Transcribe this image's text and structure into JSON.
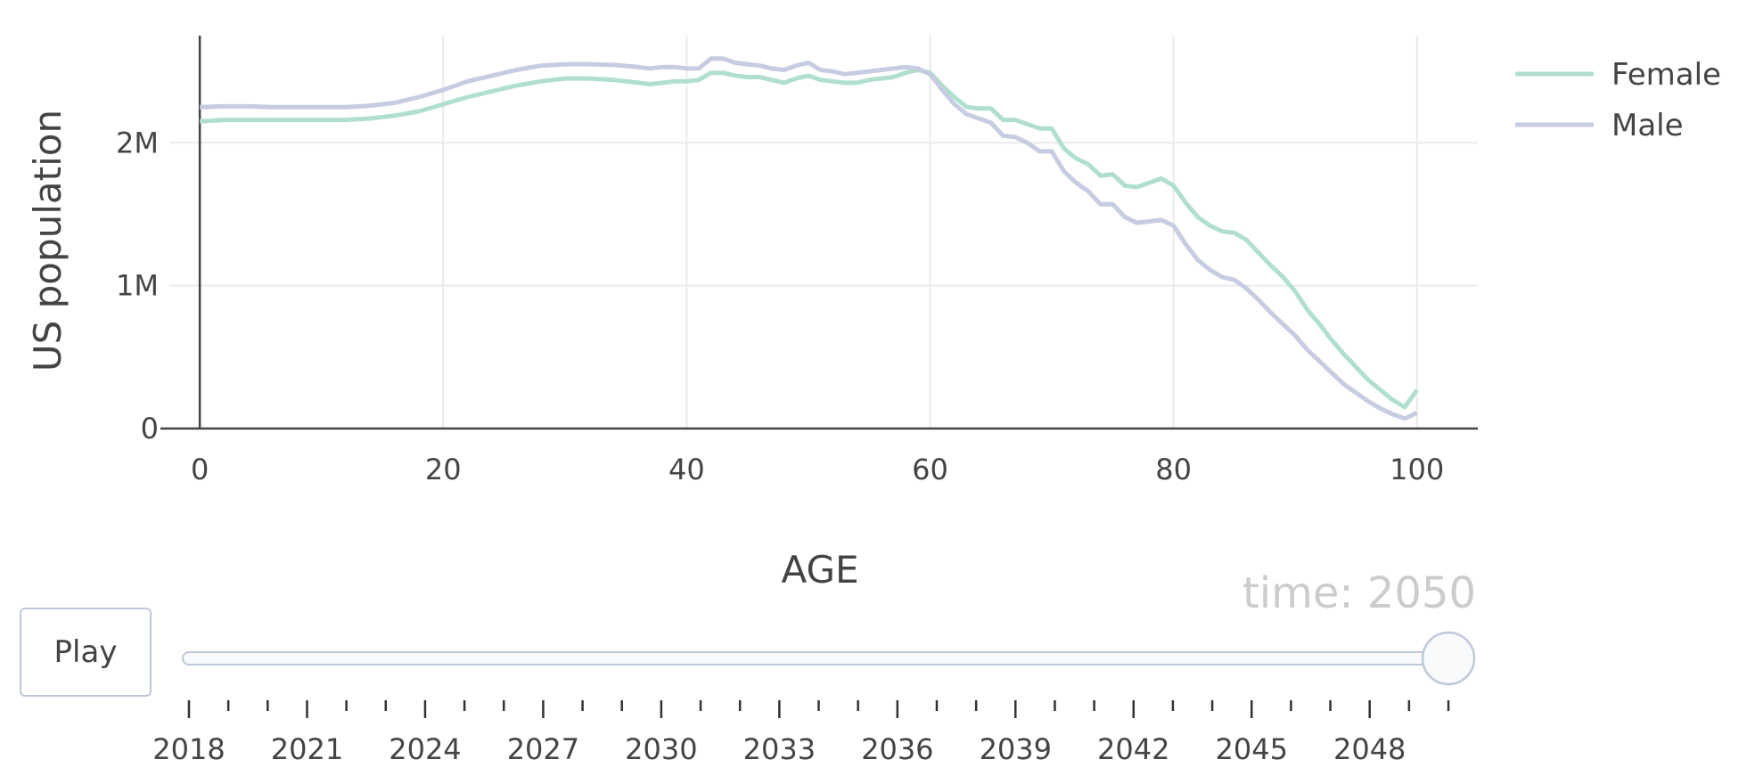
{
  "chart_data": {
    "type": "line",
    "xlabel": "AGE",
    "ylabel": "US population",
    "xlim": [
      -2.5,
      105
    ],
    "ylim": [
      0,
      2750000
    ],
    "x_ticks": [
      0,
      20,
      40,
      60,
      80,
      100
    ],
    "y_ticks": [
      0,
      1000000,
      2000000
    ],
    "y_tick_labels": [
      "0",
      "1M",
      "2M"
    ],
    "grid": true,
    "legend_position": "top-right",
    "series": [
      {
        "name": "Female",
        "color": "#b0e0cd",
        "x": [
          0,
          2,
          4,
          6,
          8,
          10,
          12,
          14,
          16,
          18,
          20,
          22,
          24,
          26,
          28,
          30,
          32,
          34,
          36,
          37,
          38,
          39,
          40,
          41,
          42,
          43,
          44,
          45,
          46,
          47,
          48,
          49,
          50,
          51,
          52,
          53,
          54,
          55,
          56,
          57,
          58,
          59,
          60,
          61,
          62,
          63,
          64,
          65,
          66,
          67,
          68,
          69,
          70,
          71,
          72,
          73,
          74,
          75,
          76,
          77,
          78,
          79,
          80,
          81,
          82,
          83,
          84,
          85,
          86,
          87,
          88,
          89,
          90,
          91,
          92,
          93,
          94,
          95,
          96,
          97,
          98,
          99,
          100
        ],
        "y": [
          2150000,
          2160000,
          2160000,
          2160000,
          2160000,
          2160000,
          2160000,
          2170000,
          2190000,
          2220000,
          2270000,
          2320000,
          2360000,
          2400000,
          2430000,
          2450000,
          2450000,
          2440000,
          2420000,
          2410000,
          2420000,
          2430000,
          2430000,
          2440000,
          2490000,
          2490000,
          2470000,
          2460000,
          2460000,
          2440000,
          2420000,
          2450000,
          2470000,
          2440000,
          2430000,
          2420000,
          2420000,
          2440000,
          2450000,
          2460000,
          2490000,
          2510000,
          2490000,
          2400000,
          2320000,
          2250000,
          2240000,
          2240000,
          2160000,
          2160000,
          2130000,
          2100000,
          2100000,
          1960000,
          1890000,
          1850000,
          1770000,
          1780000,
          1700000,
          1690000,
          1720000,
          1750000,
          1700000,
          1580000,
          1480000,
          1420000,
          1380000,
          1370000,
          1320000,
          1230000,
          1140000,
          1060000,
          960000,
          830000,
          730000,
          620000,
          520000,
          430000,
          340000,
          270000,
          200000,
          150000,
          270000
        ]
      },
      {
        "name": "Male",
        "color": "#c6cce2",
        "x": [
          0,
          2,
          4,
          6,
          8,
          10,
          12,
          14,
          16,
          18,
          20,
          22,
          24,
          26,
          28,
          30,
          32,
          34,
          36,
          37,
          38,
          39,
          40,
          41,
          42,
          43,
          44,
          45,
          46,
          47,
          48,
          49,
          50,
          51,
          52,
          53,
          54,
          55,
          56,
          57,
          58,
          59,
          60,
          61,
          62,
          63,
          64,
          65,
          66,
          67,
          68,
          69,
          70,
          71,
          72,
          73,
          74,
          75,
          76,
          77,
          78,
          79,
          80,
          81,
          82,
          83,
          84,
          85,
          86,
          87,
          88,
          89,
          90,
          91,
          92,
          93,
          94,
          95,
          96,
          97,
          98,
          99,
          100
        ],
        "y": [
          2250000,
          2255000,
          2255000,
          2250000,
          2250000,
          2250000,
          2250000,
          2260000,
          2280000,
          2320000,
          2370000,
          2430000,
          2470000,
          2510000,
          2540000,
          2550000,
          2550000,
          2545000,
          2530000,
          2520000,
          2530000,
          2530000,
          2520000,
          2520000,
          2590000,
          2590000,
          2560000,
          2550000,
          2540000,
          2520000,
          2510000,
          2540000,
          2560000,
          2510000,
          2500000,
          2480000,
          2490000,
          2500000,
          2510000,
          2520000,
          2530000,
          2520000,
          2480000,
          2370000,
          2270000,
          2200000,
          2170000,
          2140000,
          2050000,
          2040000,
          2000000,
          1940000,
          1940000,
          1800000,
          1720000,
          1660000,
          1570000,
          1570000,
          1480000,
          1440000,
          1450000,
          1460000,
          1420000,
          1290000,
          1180000,
          1110000,
          1060000,
          1040000,
          980000,
          900000,
          810000,
          730000,
          650000,
          550000,
          470000,
          390000,
          310000,
          250000,
          190000,
          140000,
          100000,
          70000,
          110000
        ]
      }
    ]
  },
  "slider": {
    "current_label": "time: 2050",
    "current_value": 2050,
    "min": 2018,
    "max": 2050,
    "labels": [
      "2018",
      "2021",
      "2024",
      "2027",
      "2030",
      "2033",
      "2036",
      "2039",
      "2042",
      "2045",
      "2048"
    ]
  },
  "controls": {
    "play_label": "Play"
  }
}
